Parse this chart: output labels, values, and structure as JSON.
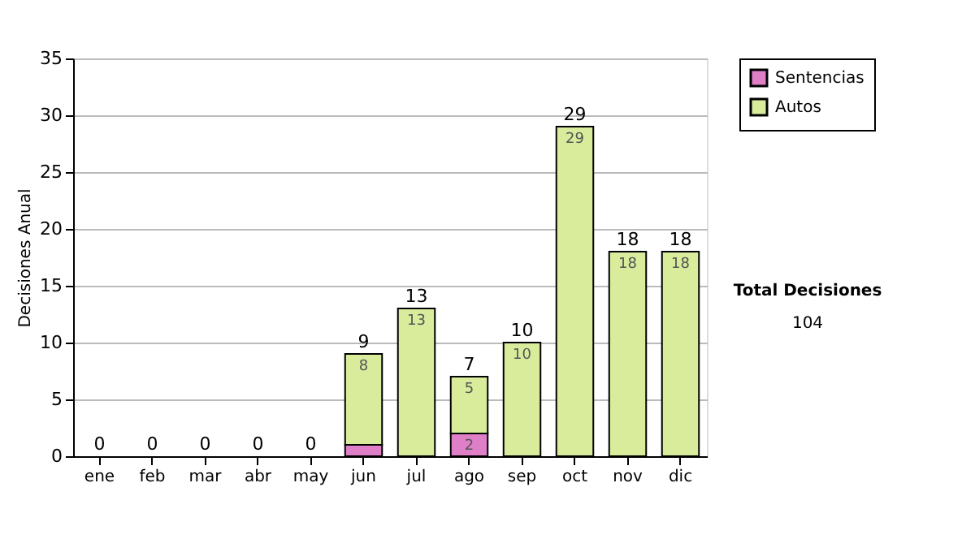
{
  "chart_data": {
    "type": "bar",
    "ylabel": "Decisiones Anual",
    "categories": [
      "ene",
      "feb",
      "mar",
      "abr",
      "may",
      "jun",
      "jul",
      "ago",
      "sep",
      "oct",
      "nov",
      "dic"
    ],
    "stacked": true,
    "series": [
      {
        "name": "Sentencias",
        "color": "#de7fc8",
        "values": [
          0,
          0,
          0,
          0,
          0,
          1,
          0,
          2,
          0,
          0,
          0,
          0
        ],
        "value_labels": [
          null,
          null,
          null,
          null,
          null,
          null,
          null,
          "2",
          null,
          null,
          null,
          null
        ]
      },
      {
        "name": "Autos",
        "color": "#d8ec9c",
        "values": [
          0,
          0,
          0,
          0,
          0,
          8,
          13,
          5,
          10,
          29,
          18,
          18
        ],
        "value_labels": [
          null,
          null,
          null,
          null,
          null,
          "8",
          "13",
          "5",
          "10",
          "29",
          "18",
          "18"
        ]
      }
    ],
    "totals": [
      "0",
      "0",
      "0",
      "0",
      "0",
      "9",
      "13",
      "7",
      "10",
      "29",
      "18",
      "18"
    ],
    "ylim": [
      0,
      35
    ],
    "yticks": [
      0,
      5,
      10,
      15,
      20,
      25,
      30,
      35
    ],
    "grid": "y",
    "legend": "right",
    "annotations": [
      "Total Decisiones",
      "104"
    ]
  }
}
